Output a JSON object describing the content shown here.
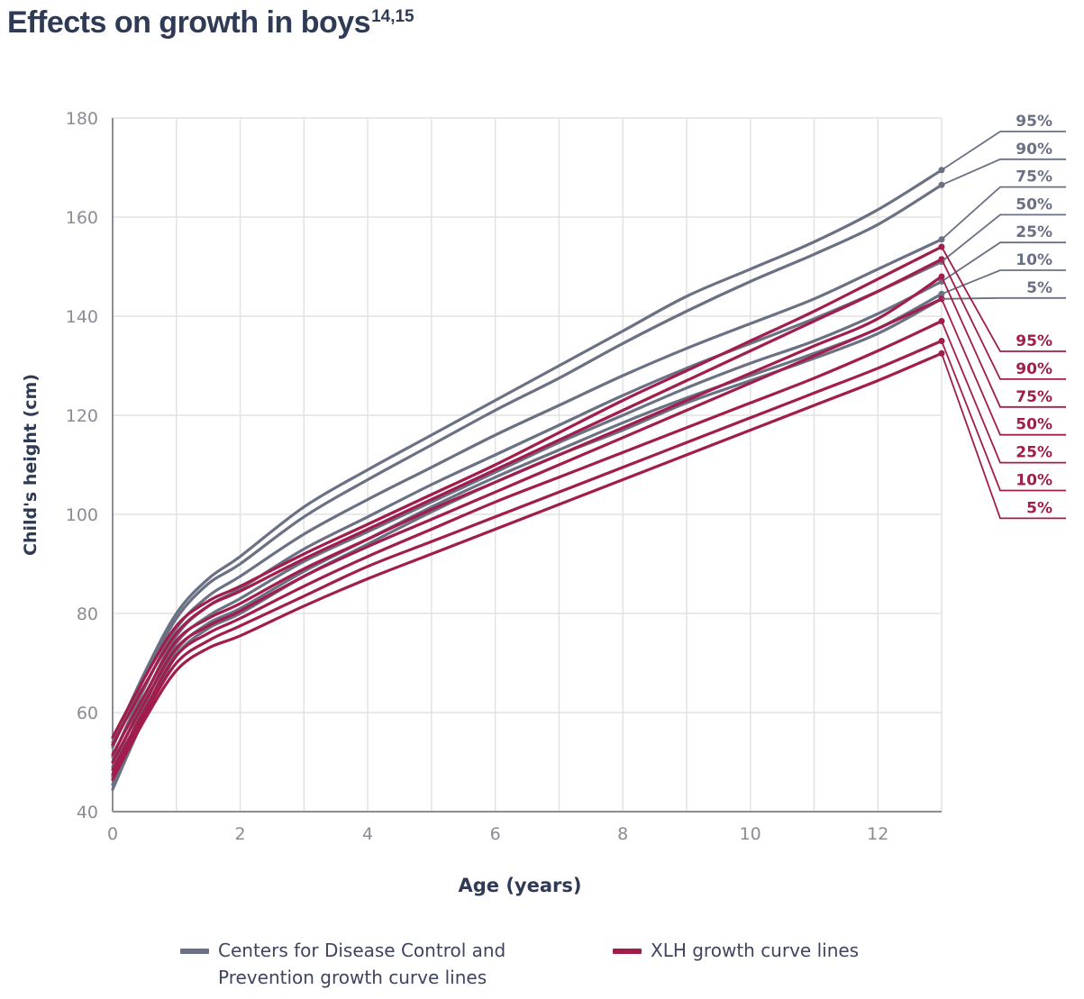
{
  "title": "Effects on growth in boys",
  "title_sup": "14,15",
  "legend": {
    "cdc_label": "Centers for Disease Control and Prevention growth curve lines",
    "xlh_label": "XLH growth curve lines"
  },
  "colors": {
    "cdc": "#6b7184",
    "xlh": "#a11d4c",
    "axis_text": "#8a8c96",
    "grid": "#e2e2e2",
    "label_dark": "#2f3a55"
  },
  "chart_data": {
    "type": "line",
    "title": "Effects on growth in boys",
    "xlabel": "Age (years)",
    "ylabel": "Child's height (cm)",
    "xlim": [
      0,
      13
    ],
    "ylim": [
      40,
      180
    ],
    "xticks": [
      0,
      2,
      4,
      6,
      8,
      10,
      12
    ],
    "yticks": [
      40,
      60,
      80,
      100,
      120,
      140,
      160,
      180
    ],
    "grid": true,
    "legend_position": "bottom",
    "x": [
      0,
      0.5,
      1,
      1.5,
      2,
      3,
      4,
      5,
      6,
      7,
      8,
      9,
      10,
      11,
      12,
      13
    ],
    "series": [
      {
        "group": "cdc",
        "name": "Centers for Disease Control and Prevention growth curve lines",
        "percentile": "95%",
        "values": [
          54,
          68,
          80,
          87,
          91.5,
          101.5,
          109,
          116,
          123,
          130,
          137,
          144,
          149.5,
          155,
          161.5,
          169.5
        ]
      },
      {
        "group": "cdc",
        "name": "Centers for Disease Control and Prevention growth curve lines",
        "percentile": "90%",
        "values": [
          53,
          67,
          79,
          86,
          90,
          99.5,
          107,
          114,
          121,
          127.5,
          134.5,
          141,
          147,
          152.5,
          158.5,
          166.5
        ]
      },
      {
        "group": "cdc",
        "name": "Centers for Disease Control and Prevention growth curve lines",
        "percentile": "75%",
        "values": [
          51,
          65,
          77,
          83.5,
          87.5,
          96,
          103,
          109.5,
          116,
          122,
          128,
          133.5,
          138.5,
          143.5,
          149.5,
          155.5
        ]
      },
      {
        "group": "cdc",
        "name": "Centers for Disease Control and Prevention growth curve lines",
        "percentile": "50%",
        "values": [
          49,
          63,
          75.5,
          81.5,
          85,
          93,
          99.5,
          106,
          112,
          118,
          124,
          129.5,
          134.5,
          139.5,
          145,
          151
        ]
      },
      {
        "group": "cdc",
        "name": "Centers for Disease Control and Prevention growth curve lines",
        "percentile": "25%",
        "values": [
          47,
          61.5,
          74,
          79.5,
          83,
          90.5,
          96.5,
          102.5,
          108.5,
          114.5,
          120,
          125.5,
          130.5,
          135,
          140.5,
          147
        ]
      },
      {
        "group": "cdc",
        "name": "Centers for Disease Control and Prevention growth curve lines",
        "percentile": "10%",
        "values": [
          45.5,
          60,
          72.5,
          78,
          81,
          88.5,
          95,
          101.5,
          107.5,
          113,
          118.5,
          123.5,
          128,
          132.5,
          137.5,
          144.5
        ]
      },
      {
        "group": "cdc",
        "name": "Centers for Disease Control and Prevention growth curve lines",
        "percentile": "5%",
        "values": [
          44.5,
          59,
          71.5,
          77,
          80,
          87.5,
          94,
          100.5,
          106.5,
          112,
          117,
          122.5,
          127,
          131.5,
          136.5,
          143.5
        ]
      },
      {
        "group": "xlh",
        "name": "XLH growth curve lines",
        "percentile": "95%",
        "values": [
          55,
          67,
          77.5,
          82.5,
          85.5,
          92,
          98,
          104,
          110,
          116.5,
          123,
          129,
          135,
          141,
          147.5,
          154
        ]
      },
      {
        "group": "xlh",
        "name": "XLH growth curve lines",
        "percentile": "90%",
        "values": [
          53.5,
          65.5,
          76,
          81.5,
          84.5,
          91,
          97,
          103,
          109,
          115,
          121,
          127,
          133,
          139,
          145,
          151.5
        ]
      },
      {
        "group": "xlh",
        "name": "XLH growth curve lines",
        "percentile": "75%",
        "values": [
          51.5,
          63.5,
          74.5,
          79,
          82,
          89,
          95,
          101,
          106.5,
          112,
          117.5,
          123,
          128.5,
          134,
          139.5,
          148
        ]
      },
      {
        "group": "xlh",
        "name": "XLH growth curve lines",
        "percentile": "50%",
        "values": [
          50,
          62,
          73,
          77.5,
          80.5,
          87.5,
          93.5,
          99,
          104.5,
          110,
          115.5,
          121,
          126.5,
          132,
          137.5,
          143.5
        ]
      },
      {
        "group": "xlh",
        "name": "XLH growth curve lines",
        "percentile": "25%",
        "values": [
          48.5,
          60.5,
          71.5,
          76,
          79,
          85.5,
          91.5,
          97,
          102.5,
          107.5,
          112.5,
          117.5,
          122.5,
          127.5,
          133,
          139
        ]
      },
      {
        "group": "xlh",
        "name": "XLH growth curve lines",
        "percentile": "10%",
        "values": [
          47.5,
          59.5,
          70,
          74.5,
          77.5,
          83.5,
          89.5,
          94.5,
          99.5,
          104.5,
          109.5,
          114.5,
          119.5,
          124.5,
          129.5,
          135
        ]
      },
      {
        "group": "xlh",
        "name": "XLH growth curve lines",
        "percentile": "5%",
        "values": [
          46.5,
          58.5,
          68.5,
          73,
          75.5,
          81.5,
          87,
          92,
          97,
          102,
          107,
          112,
          117,
          122,
          127,
          132.5
        ]
      }
    ]
  }
}
